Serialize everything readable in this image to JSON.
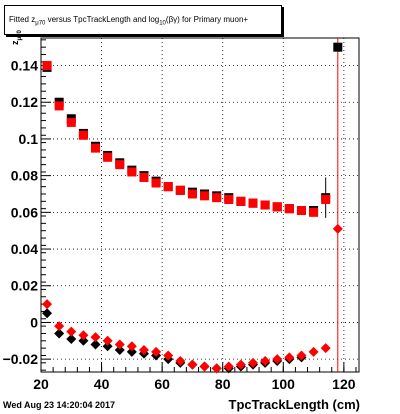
{
  "title": {
    "part1": "Fitted  z",
    "sub1": "μ70",
    "part2": " versus TpcTrackLength and log",
    "sub2": "10",
    "part3": "(βγ) for Primary muon+"
  },
  "ylabel": {
    "text": "z",
    "sub": "μ70"
  },
  "xlabel": "TpcTrackLength (cm)",
  "datestamp": "Wed Aug 23 14:20:04 2017",
  "chart_data": {
    "type": "scatter",
    "xlim": [
      20,
      125
    ],
    "ylim": [
      -0.027,
      0.155
    ],
    "x_ticks": [
      20,
      40,
      60,
      80,
      100,
      120
    ],
    "y_ticks": [
      -0.02,
      0,
      0.02,
      0.04,
      0.06,
      0.08,
      0.1,
      0.12,
      0.14
    ],
    "y_tick_labels": [
      "−0.02",
      "0",
      "0.02",
      "0.04",
      "0.06",
      "0.08",
      "0.1",
      "0.12",
      "0.14"
    ],
    "grid": true,
    "series": [
      {
        "marker": "square",
        "color": "#000000",
        "points": [
          [
            22,
            0.139
          ],
          [
            26,
            0.12
          ],
          [
            30,
            0.111
          ],
          [
            34,
            0.103
          ],
          [
            38,
            0.096
          ],
          [
            42,
            0.091
          ],
          [
            46,
            0.087
          ],
          [
            50,
            0.083
          ],
          [
            54,
            0.08
          ],
          [
            58,
            0.077
          ],
          [
            62,
            0.074
          ],
          [
            66,
            0.072
          ],
          [
            70,
            0.071
          ],
          [
            74,
            0.07
          ],
          [
            78,
            0.069
          ],
          [
            82,
            0.068
          ],
          [
            86,
            0.066
          ],
          [
            90,
            0.065
          ],
          [
            94,
            0.064
          ],
          [
            98,
            0.063
          ],
          [
            102,
            0.062
          ],
          [
            106,
            0.061
          ],
          [
            110,
            0.061
          ],
          [
            114,
            0.068
          ],
          [
            118,
            0.15
          ]
        ]
      },
      {
        "marker": "square",
        "color": "#ff0000",
        "points": [
          [
            22,
            0.14
          ],
          [
            26,
            0.118
          ],
          [
            30,
            0.109
          ],
          [
            34,
            0.102
          ],
          [
            38,
            0.095
          ],
          [
            42,
            0.09
          ],
          [
            46,
            0.086
          ],
          [
            50,
            0.082
          ],
          [
            54,
            0.079
          ],
          [
            58,
            0.076
          ],
          [
            62,
            0.074
          ],
          [
            66,
            0.072
          ],
          [
            70,
            0.07
          ],
          [
            74,
            0.069
          ],
          [
            78,
            0.068
          ],
          [
            82,
            0.067
          ],
          [
            86,
            0.066
          ],
          [
            90,
            0.065
          ],
          [
            94,
            0.064
          ],
          [
            98,
            0.063
          ],
          [
            102,
            0.062
          ],
          [
            106,
            0.061
          ],
          [
            110,
            0.06
          ],
          [
            114,
            0.067
          ]
        ]
      },
      {
        "marker": "diamond",
        "color": "#000000",
        "points": [
          [
            22,
            0.005
          ],
          [
            26,
            -0.006
          ],
          [
            30,
            -0.009
          ],
          [
            34,
            -0.01
          ],
          [
            38,
            -0.012
          ],
          [
            42,
            -0.013
          ],
          [
            46,
            -0.015
          ],
          [
            50,
            -0.016
          ],
          [
            54,
            -0.017
          ],
          [
            58,
            -0.018
          ],
          [
            62,
            -0.02
          ],
          [
            66,
            -0.022
          ],
          [
            70,
            -0.023
          ],
          [
            74,
            -0.024
          ],
          [
            78,
            -0.025
          ],
          [
            82,
            -0.025
          ],
          [
            86,
            -0.024
          ],
          [
            90,
            -0.023
          ],
          [
            94,
            -0.022
          ],
          [
            98,
            -0.021
          ],
          [
            102,
            -0.02
          ],
          [
            106,
            -0.019
          ]
        ]
      },
      {
        "marker": "diamond",
        "color": "#ff0000",
        "points": [
          [
            22,
            0.01
          ],
          [
            26,
            -0.002
          ],
          [
            30,
            -0.005
          ],
          [
            34,
            -0.007
          ],
          [
            38,
            -0.008
          ],
          [
            42,
            -0.01
          ],
          [
            46,
            -0.012
          ],
          [
            50,
            -0.013
          ],
          [
            54,
            -0.015
          ],
          [
            58,
            -0.016
          ],
          [
            62,
            -0.018
          ],
          [
            66,
            -0.021
          ],
          [
            70,
            -0.023
          ],
          [
            74,
            -0.024
          ],
          [
            78,
            -0.025
          ],
          [
            82,
            -0.024
          ],
          [
            86,
            -0.023
          ],
          [
            90,
            -0.022
          ],
          [
            94,
            -0.021
          ],
          [
            98,
            -0.02
          ],
          [
            102,
            -0.019
          ],
          [
            106,
            -0.018
          ],
          [
            110,
            -0.016
          ],
          [
            114,
            -0.014
          ],
          [
            118,
            0.051
          ]
        ]
      }
    ],
    "error_bars": [
      {
        "x": 114,
        "low": 0.057,
        "high": 0.079,
        "color": "#000000"
      },
      {
        "x": 118,
        "low": -0.027,
        "high": 0.155,
        "color": "#ff0000"
      }
    ]
  }
}
